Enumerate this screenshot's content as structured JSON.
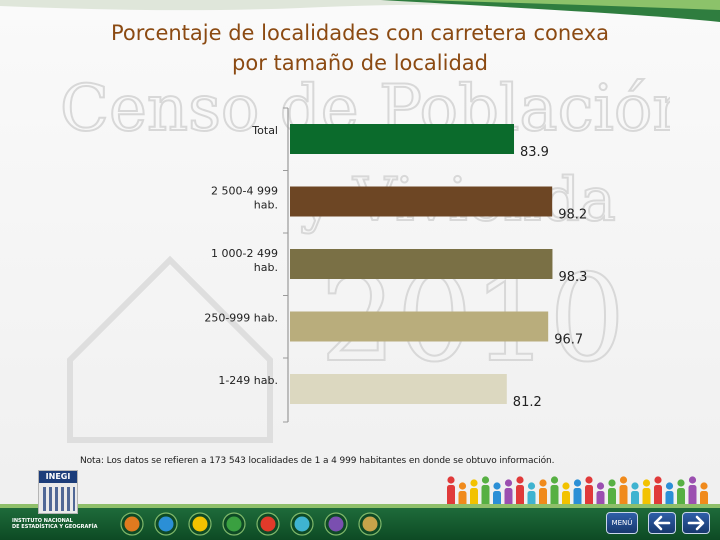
{
  "title": {
    "line1": "Porcentaje de localidades con carretera conexa",
    "line2": "por tamaño de localidad"
  },
  "watermark": {
    "line1": "Censo de Población",
    "line2": "y Vivienda",
    "line3": "2010"
  },
  "chart_data": {
    "type": "bar",
    "orientation": "horizontal",
    "categories": [
      "Total",
      "2 500-4 999\nhab.",
      "1 000-2 499\nhab.",
      "250-999  hab.",
      "1-249 hab."
    ],
    "category_lines": [
      [
        "Total"
      ],
      [
        "2 500-4 999",
        "hab."
      ],
      [
        "1 000-2 499",
        "hab."
      ],
      [
        "250-999  hab."
      ],
      [
        "1-249 hab."
      ]
    ],
    "values": [
      83.9,
      98.2,
      98.3,
      96.7,
      81.2
    ],
    "value_labels": [
      "83.9",
      "98.2",
      "98.3",
      "96.7",
      "81.2"
    ],
    "colors": [
      "#0b6b2c",
      "#6d4624",
      "#7a7045",
      "#b9ad7c",
      "#dcd8c0"
    ],
    "xlim": [
      0,
      100
    ],
    "grid": false,
    "legend": "none"
  },
  "note": "Nota: Los datos se refieren a 173 543 localidades de 1 a 4 999 habitantes en donde se obtuvo información.",
  "footer": {
    "logo_name": "INEGI",
    "logo_line1": "INSTITUTO NACIONAL",
    "logo_line2": "DE ESTADÍSTICA Y GEOGRAFÍA",
    "menu_label": "MENÚ",
    "prev_icon": "arrow-left-icon",
    "next_icon": "arrow-right-icon",
    "circle_colors": [
      "#e07a1f",
      "#2b8fd6",
      "#f2c200",
      "#3aa040",
      "#e23a2a",
      "#3fb3d0",
      "#7a4fb0",
      "#c7a34a"
    ],
    "people_colors": [
      "#e03a3a",
      "#f08a1c",
      "#f2c200",
      "#57b043",
      "#2b8fd6",
      "#9b4fb0",
      "#e03a3a",
      "#3fb3d0",
      "#f08a1c",
      "#57b043",
      "#f2c200",
      "#2b8fd6",
      "#e03a3a",
      "#9b4fb0",
      "#57b043",
      "#f08a1c",
      "#3fb3d0",
      "#f2c200",
      "#e03a3a",
      "#2b8fd6",
      "#57b043",
      "#9b4fb0",
      "#f08a1c"
    ]
  }
}
